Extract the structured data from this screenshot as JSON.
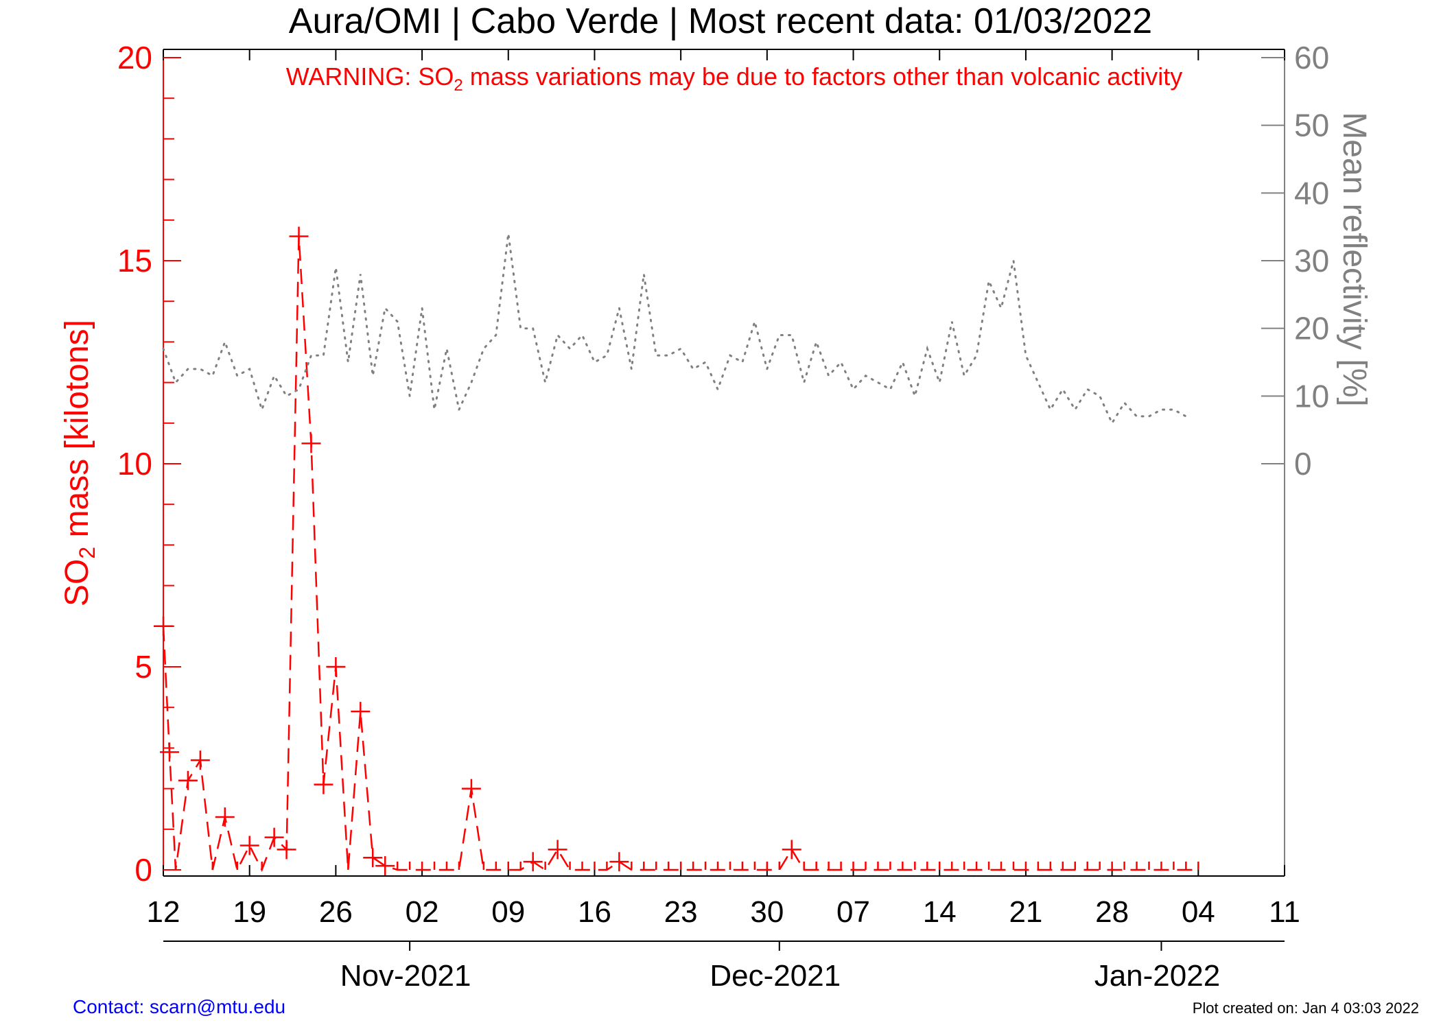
{
  "title": "Aura/OMI | Cabo Verde | Most recent data: 01/03/2022",
  "warning": {
    "prefix": "WARNING: SO",
    "subscript": "2",
    "suffix": " mass variations may be due to factors other than volcanic activity"
  },
  "footer": {
    "contact": "Contact: scarn@mtu.edu",
    "created": "Plot created on: Jan  4 03:03 2022"
  },
  "colors": {
    "so2": "#ff0000",
    "reflectivity": "#808080",
    "axis": "#000000",
    "contact": "#0000ff"
  },
  "chart_data": {
    "type": "line",
    "start_date": "2021-10-12",
    "x_unit": "days since 2021-10-12",
    "xlim": [
      0,
      91
    ],
    "x_ticks": [
      {
        "day": 0,
        "label": "12"
      },
      {
        "day": 7,
        "label": "19"
      },
      {
        "day": 14,
        "label": "26"
      },
      {
        "day": 21,
        "label": "02"
      },
      {
        "day": 28,
        "label": "09"
      },
      {
        "day": 35,
        "label": "16"
      },
      {
        "day": 42,
        "label": "23"
      },
      {
        "day": 49,
        "label": "30"
      },
      {
        "day": 56,
        "label": "07"
      },
      {
        "day": 63,
        "label": "14"
      },
      {
        "day": 70,
        "label": "21"
      },
      {
        "day": 77,
        "label": "28"
      },
      {
        "day": 84,
        "label": "04"
      },
      {
        "day": 91,
        "label": "11"
      }
    ],
    "month_ticks": [
      {
        "day": 20,
        "label": "Nov-2021"
      },
      {
        "day": 50,
        "label": "Dec-2021"
      },
      {
        "day": 81,
        "label": "Jan-2022"
      }
    ],
    "y_left": {
      "label_prefix": "SO",
      "label_subscript": "2",
      "label_suffix": " mass [kilotons]",
      "ylim": [
        0,
        20
      ],
      "ticks": [
        0,
        5,
        10,
        15,
        20
      ]
    },
    "y_right": {
      "label": "Mean reflectivity [%]",
      "ylim": [
        -60,
        60
      ],
      "ticks": [
        0,
        10,
        20,
        30,
        40,
        50,
        60
      ]
    },
    "series": [
      {
        "name": "SO2 mass",
        "axis": "left",
        "style": "dashed",
        "marker": "plus",
        "points": [
          [
            0,
            6.0
          ],
          [
            0.5,
            2.9
          ],
          [
            1,
            0
          ],
          [
            2,
            2.2
          ],
          [
            3,
            2.7
          ],
          [
            4,
            0
          ],
          [
            5,
            1.3
          ],
          [
            6,
            0
          ],
          [
            7,
            0.6
          ],
          [
            8,
            0
          ],
          [
            9,
            0.8
          ],
          [
            10,
            0.5
          ],
          [
            11,
            15.6
          ],
          [
            12,
            10.5
          ],
          [
            13,
            2.1
          ],
          [
            14,
            5.0
          ],
          [
            15,
            0
          ],
          [
            16,
            3.9
          ],
          [
            17,
            0.3
          ],
          [
            18,
            0.1
          ],
          [
            19,
            0
          ],
          [
            20,
            0
          ],
          [
            21,
            0
          ],
          [
            22,
            0
          ],
          [
            23,
            0
          ],
          [
            24,
            0
          ],
          [
            25,
            2.0
          ],
          [
            26,
            0
          ],
          [
            27,
            0
          ],
          [
            28,
            0
          ],
          [
            29,
            0
          ],
          [
            30,
            0.2
          ],
          [
            31,
            0
          ],
          [
            32,
            0.5
          ],
          [
            33,
            0
          ],
          [
            34,
            0
          ],
          [
            35,
            0
          ],
          [
            36,
            0
          ],
          [
            37,
            0.2
          ],
          [
            38,
            0
          ],
          [
            39,
            0
          ],
          [
            40,
            0
          ],
          [
            41,
            0
          ],
          [
            42,
            0
          ],
          [
            43,
            0
          ],
          [
            44,
            0
          ],
          [
            45,
            0
          ],
          [
            46,
            0
          ],
          [
            47,
            0
          ],
          [
            48,
            0
          ],
          [
            49,
            0
          ],
          [
            50,
            0
          ],
          [
            51,
            0.5
          ],
          [
            52,
            0
          ],
          [
            53,
            0
          ],
          [
            54,
            0
          ],
          [
            55,
            0
          ],
          [
            56,
            0
          ],
          [
            57,
            0
          ],
          [
            58,
            0
          ],
          [
            59,
            0
          ],
          [
            60,
            0
          ],
          [
            61,
            0
          ],
          [
            62,
            0
          ],
          [
            63,
            0
          ],
          [
            64,
            0
          ],
          [
            65,
            0
          ],
          [
            66,
            0
          ],
          [
            67,
            0
          ],
          [
            68,
            0
          ],
          [
            69,
            0
          ],
          [
            70,
            0
          ],
          [
            71,
            0
          ],
          [
            72,
            0
          ],
          [
            73,
            0
          ],
          [
            74,
            0
          ],
          [
            75,
            0
          ],
          [
            76,
            0
          ],
          [
            77,
            0
          ],
          [
            78,
            0
          ],
          [
            79,
            0
          ],
          [
            80,
            0
          ],
          [
            81,
            0
          ],
          [
            82,
            0
          ],
          [
            83,
            0
          ],
          [
            84,
            0
          ]
        ]
      },
      {
        "name": "Mean reflectivity",
        "axis": "right",
        "style": "dotted",
        "marker": "none",
        "points": [
          [
            0,
            17
          ],
          [
            1,
            12
          ],
          [
            2,
            14
          ],
          [
            3,
            14
          ],
          [
            4,
            13
          ],
          [
            5,
            18
          ],
          [
            6,
            13
          ],
          [
            7,
            14
          ],
          [
            8,
            8
          ],
          [
            9,
            13
          ],
          [
            10,
            10
          ],
          [
            11,
            11
          ],
          [
            12,
            16
          ],
          [
            13,
            16
          ],
          [
            14,
            29
          ],
          [
            15,
            15
          ],
          [
            16,
            28
          ],
          [
            17,
            13
          ],
          [
            18,
            23
          ],
          [
            19,
            21
          ],
          [
            20,
            10
          ],
          [
            21,
            23
          ],
          [
            22,
            8
          ],
          [
            23,
            17
          ],
          [
            24,
            8
          ],
          [
            25,
            12
          ],
          [
            26,
            17
          ],
          [
            27,
            19
          ],
          [
            28,
            34
          ],
          [
            29,
            20
          ],
          [
            30,
            20
          ],
          [
            31,
            12
          ],
          [
            32,
            19
          ],
          [
            33,
            17
          ],
          [
            34,
            19
          ],
          [
            35,
            15
          ],
          [
            36,
            16
          ],
          [
            37,
            23
          ],
          [
            38,
            14
          ],
          [
            39,
            28
          ],
          [
            40,
            16
          ],
          [
            41,
            16
          ],
          [
            42,
            17
          ],
          [
            43,
            14
          ],
          [
            44,
            15
          ],
          [
            45,
            11
          ],
          [
            46,
            16
          ],
          [
            47,
            15
          ],
          [
            48,
            21
          ],
          [
            49,
            14
          ],
          [
            50,
            19
          ],
          [
            51,
            19
          ],
          [
            52,
            12
          ],
          [
            53,
            18
          ],
          [
            54,
            13
          ],
          [
            55,
            15
          ],
          [
            56,
            11
          ],
          [
            57,
            13
          ],
          [
            58,
            12
          ],
          [
            59,
            11
          ],
          [
            60,
            15
          ],
          [
            61,
            10
          ],
          [
            62,
            17
          ],
          [
            63,
            12
          ],
          [
            64,
            21
          ],
          [
            65,
            13
          ],
          [
            66,
            16
          ],
          [
            67,
            27
          ],
          [
            68,
            23
          ],
          [
            69,
            30
          ],
          [
            70,
            16
          ],
          [
            71,
            12
          ],
          [
            72,
            8
          ],
          [
            73,
            11
          ],
          [
            74,
            8
          ],
          [
            75,
            11
          ],
          [
            76,
            10
          ],
          [
            77,
            6
          ],
          [
            78,
            9
          ],
          [
            79,
            7
          ],
          [
            80,
            7
          ],
          [
            81,
            8
          ],
          [
            82,
            8
          ],
          [
            83,
            7
          ]
        ]
      }
    ]
  }
}
